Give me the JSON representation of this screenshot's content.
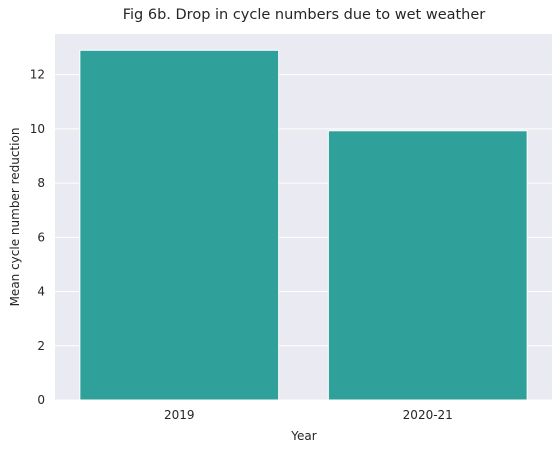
{
  "chart_data": {
    "type": "bar",
    "title": "Fig 6b. Drop in cycle numbers due to wet weather",
    "xlabel": "Year",
    "ylabel": "Mean cycle number reduction",
    "categories": [
      "2019",
      "2020-21"
    ],
    "values": [
      12.9,
      9.93
    ],
    "ylim": [
      0,
      13.5
    ],
    "yticks": [
      0,
      2,
      4,
      6,
      8,
      10,
      12
    ],
    "yticklabels": [
      "0",
      "2",
      "4",
      "6",
      "8",
      "10",
      "12"
    ],
    "grid": true,
    "bar_color": "#30a09a",
    "plot_background": "#eaeaf2",
    "grid_color": "#ffffff"
  }
}
